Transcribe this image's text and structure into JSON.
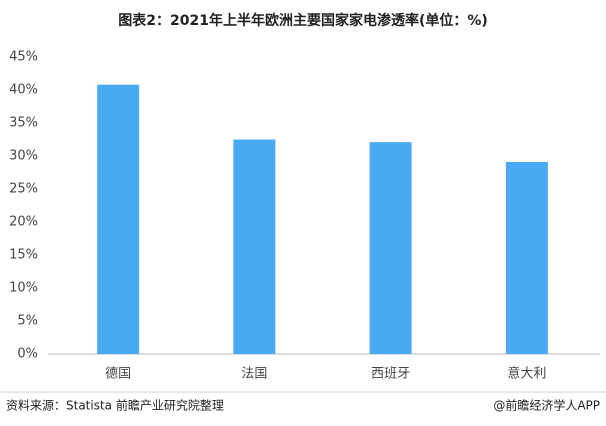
{
  "chart_data": {
    "type": "bar",
    "title": "图表2：2021年上半年欧洲主要国家家电渗透率(单位：%)",
    "categories": [
      "德国",
      "法国",
      "西班牙",
      "意大利"
    ],
    "values": [
      40.8,
      32.5,
      32.1,
      29.1
    ],
    "color": "#49a9f2",
    "ylim": [
      0,
      45
    ],
    "yticks": [
      {
        "value": 0,
        "label": "0%"
      },
      {
        "value": 5,
        "label": "5%"
      },
      {
        "value": 10,
        "label": "10%"
      },
      {
        "value": 15,
        "label": "15%"
      },
      {
        "value": 20,
        "label": "20%"
      },
      {
        "value": 25,
        "label": "25%"
      },
      {
        "value": 30,
        "label": "30%"
      },
      {
        "value": 35,
        "label": "35%"
      },
      {
        "value": 40,
        "label": "40%"
      },
      {
        "value": 45,
        "label": "45%"
      }
    ],
    "grid": false,
    "source": "资料来源：Statista 前瞻产业研究院整理",
    "credit": "@前瞻经济学人APP"
  }
}
